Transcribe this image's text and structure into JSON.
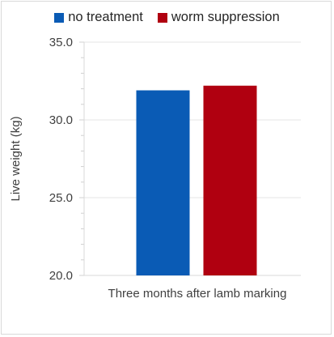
{
  "chart_data": {
    "type": "bar",
    "categories": [
      "Three months after lamb marking"
    ],
    "series": [
      {
        "name": "no treatment",
        "values": [
          31.9
        ],
        "color": "#0a5bb5"
      },
      {
        "name": "worm suppression",
        "values": [
          32.2
        ],
        "color": "#b00010"
      }
    ],
    "ylabel": "Live weight (kg)",
    "xlabel": "",
    "ylim": [
      20,
      35
    ],
    "yticks": [
      "20.0",
      "25.0",
      "30.0",
      "35.0"
    ],
    "ytick_values": [
      20,
      25,
      30,
      35
    ],
    "grid": true,
    "legend_position": "top"
  }
}
